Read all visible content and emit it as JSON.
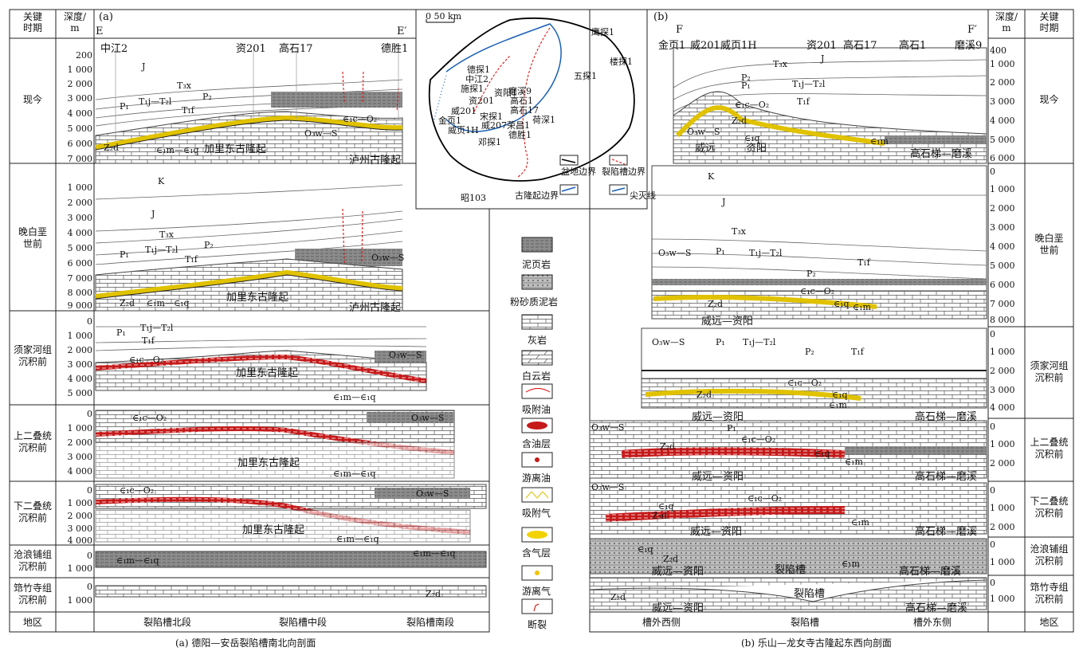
{
  "left": {
    "col_key_time": "关键\n时期",
    "col_depth": "深度/\nm",
    "panel_tag": "(a)",
    "end_left": "E",
    "end_right": "E′",
    "wells": [
      "中江2",
      "资201",
      "高石17",
      "德胜1"
    ],
    "eras": [
      "现今",
      "晚白垩\n世前",
      "须家河组\n沉积前",
      "上二叠统\n沉积前",
      "下二叠统\n沉积前",
      "沧浪铺组\n沉积前",
      "筇竹寺组\n沉积前"
    ],
    "ticks_present": [
      "200",
      "1 000",
      "2 000",
      "3 000",
      "4 000",
      "5 000",
      "6 000",
      "7 000"
    ],
    "ticks_k": [
      "1 000",
      "2 000",
      "3 000",
      "4 000",
      "5 000",
      "6 000",
      "7 000",
      "8 000",
      "9 000"
    ],
    "ticks_x": [
      "0",
      "1 000",
      "2 000",
      "3 000",
      "4 000",
      "5 000"
    ],
    "ticks_p2": [
      "0",
      "1 000",
      "2 000",
      "3 000",
      "4 000"
    ],
    "ticks_p1": [
      "0",
      "1 000",
      "2 000",
      "3 000",
      "4 000"
    ],
    "ticks_c": [
      "0",
      "1 000"
    ],
    "ticks_z": [
      "0",
      "1 000"
    ],
    "footer_region": "地区",
    "footer_segments": [
      "裂陷槽北段",
      "裂陷槽中段",
      "裂陷槽南段"
    ],
    "caption": "(a) 德阳—安岳裂陷槽南北向剖面",
    "labels": {
      "J": "J",
      "T3x": "T₃x",
      "T1j": "T₁j—T₂l",
      "T1f": "T₁f",
      "P1": "P₁",
      "P2": "P₂",
      "K": "K",
      "Z2d": "Z₂d",
      "E1m": "∈₁m—∈₁q",
      "E1c": "∈₁c—O₂",
      "O3w": "O₃w—S",
      "uplift": "加里东古隆起",
      "luzhou": "泸州古隆起"
    }
  },
  "map": {
    "scale": "0  50 km",
    "towns": [
      "鹰探1",
      "楼探1",
      "五探1",
      "德探1",
      "中江2",
      "施探1",
      "资阳1",
      "资201",
      "磨溪9",
      "高石1",
      "高石17",
      "威201",
      "宋探1",
      "威207",
      "金页1",
      "威页1H",
      "荷深1",
      "荣昌1",
      "德胜1",
      "邓探1",
      "昭103"
    ],
    "legend": [
      "盆地边界",
      "裂陷槽边界",
      "古隆起边界",
      "尖灭线"
    ]
  },
  "legend": [
    "泥页岩",
    "粉砂质泥岩",
    "灰岩",
    "白云岩",
    "吸附油",
    "含油层",
    "游离油",
    "吸附气",
    "含气层",
    "游离气",
    "断裂"
  ],
  "right": {
    "col_key_time": "关键\n时期",
    "col_depth": "深度/\nm",
    "panel_tag": "(b)",
    "end_left": "F",
    "end_right": "F′",
    "wells": [
      "金页1",
      "威201",
      "威页1H",
      "资201",
      "高石17",
      "高石1",
      "磨溪9"
    ],
    "eras": [
      "现今",
      "晚白垩\n世前",
      "须家河组\n沉积前",
      "上二叠统\n沉积前",
      "下二叠统\n沉积前",
      "沧浪铺组\n沉积前",
      "筇竹寺组\n沉积前"
    ],
    "ticks_present": [
      "400",
      "1 000",
      "2 000",
      "3 000",
      "4 000",
      "5 000",
      "6 000"
    ],
    "ticks_k": [
      "0",
      "1 000",
      "2 000",
      "3 000",
      "4 000",
      "5 000",
      "6 000",
      "7 000",
      "8 000"
    ],
    "ticks_x": [
      "0",
      "1 000",
      "2 000",
      "3 000",
      "4 000"
    ],
    "ticks_p2": [
      "0",
      "1 000",
      "2 000"
    ],
    "ticks_p1": [
      "0",
      "1 000",
      "2 000"
    ],
    "ticks_c": [
      "0",
      "1 000"
    ],
    "ticks_z": [
      "0",
      "1 000"
    ],
    "footer_region": "地区",
    "footer_segments": [
      "槽外西侧",
      "裂陷槽",
      "槽外东侧"
    ],
    "caption": "(b) 乐山—龙女寺古隆起东西向剖面",
    "labels": {
      "weiyuan": "威远",
      "ziyang": "资阳",
      "wy_zy": "威远—资阳",
      "gsm": "高石梯—磨溪",
      "rift": "裂陷槽",
      "E1q": "∈₁q",
      "E1m": "∈₁m",
      "Z2d": "Z₂d",
      "E1c": "∈₁c—O₂",
      "O3w": "O₃w—S",
      "J": "J",
      "T3x": "T₃x",
      "K": "K",
      "T1j": "T₁j—T₂l",
      "T1f": "T₁f",
      "P1": "P₁",
      "P2": "P₂"
    }
  }
}
